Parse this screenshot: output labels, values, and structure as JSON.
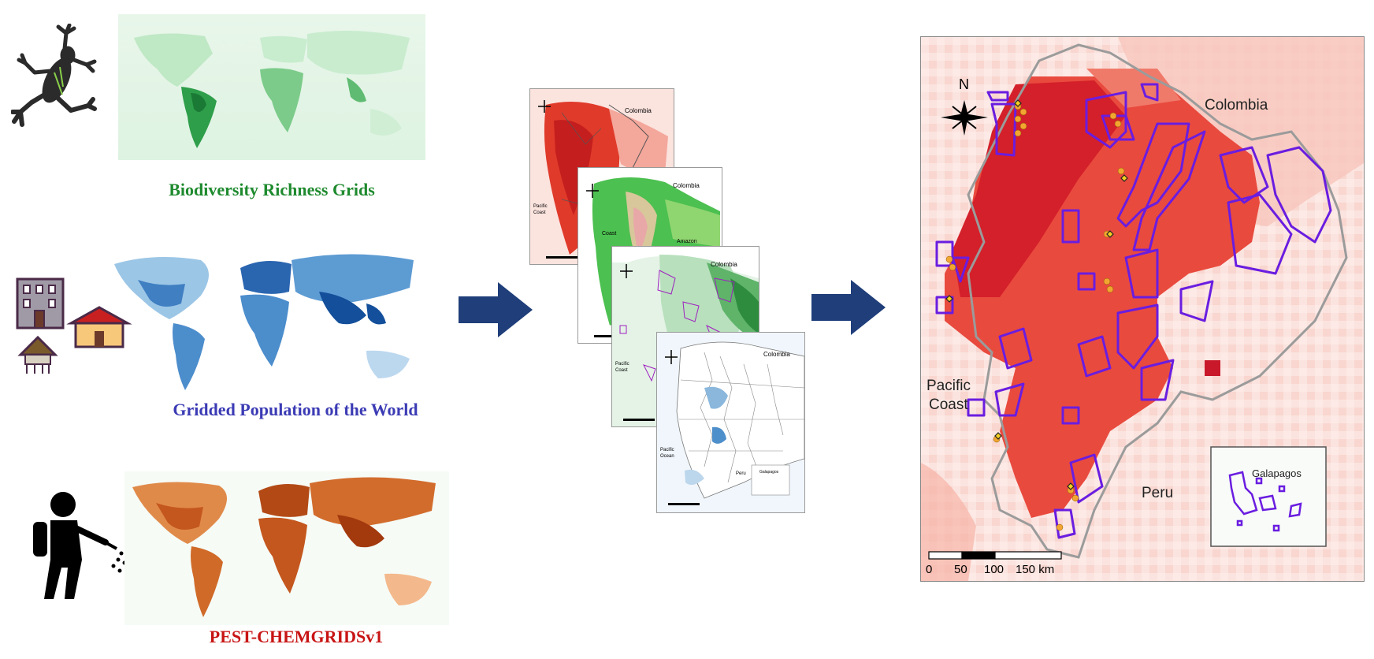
{
  "left": {
    "biodiversity": {
      "caption": "Biodiversity Richness Grids",
      "color": "#1e8a2e"
    },
    "population": {
      "caption": "Gridded Population of the World",
      "color": "#3b3bb5"
    },
    "pesticide": {
      "caption": "PEST-CHEMGRIDSv1",
      "color": "#c81414"
    }
  },
  "arrow_color": "#1f3e7a",
  "stack": {
    "map1": {
      "colombia": "Colombia",
      "pacific": "Pacific\nCoast"
    },
    "map2": {
      "colombia": "Colombia",
      "coast": "Coast",
      "amazon": "Amazon"
    },
    "map3": {
      "colombia": "Colombia",
      "pacific": "Pacific\nCoast"
    },
    "map4": {
      "colombia": "Colombia",
      "pacific": "Pacific\nOcean",
      "peru": "Peru",
      "galapagos": "Galapagos"
    }
  },
  "result_map": {
    "north": "N",
    "colombia": "Colombia",
    "pacific_line1": "Pacific",
    "pacific_line2": "Coast",
    "peru": "Peru",
    "galapagos": "Galapagos",
    "scale_labels": [
      "0",
      "50",
      "100",
      "150 km"
    ]
  }
}
